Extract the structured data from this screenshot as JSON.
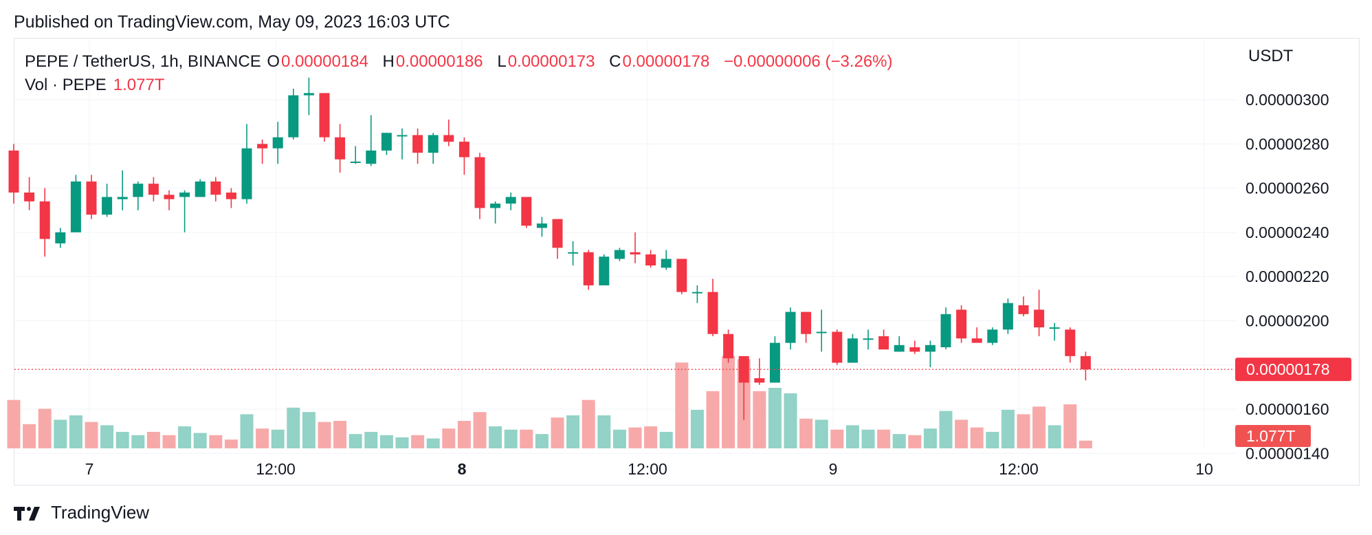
{
  "header": {
    "published": "Published on TradingView.com, May 09, 2023 16:03 UTC"
  },
  "legend": {
    "symbol": "PEPE / TetherUS, 1h, BINANCE",
    "open_label": "O",
    "open": "0.00000184",
    "high_label": "H",
    "high": "0.00000186",
    "low_label": "L",
    "low": "0.00000173",
    "close_label": "C",
    "close": "0.00000178",
    "change": "−0.00000006 (−3.26%)",
    "volume_label": "Vol · PEPE",
    "volume": "1.077T"
  },
  "axis": {
    "unit": "USDT",
    "y_ticks": [
      "0.00000300",
      "0.00000280",
      "0.00000260",
      "0.00000240",
      "0.00000220",
      "0.00000200",
      "0.00000160",
      "0.00000140"
    ],
    "x_ticks": [
      "7",
      "12:00",
      "8",
      "12:00",
      "9",
      "12:00",
      "10"
    ],
    "last_price": "0.00000178",
    "last_volume": "1.077T"
  },
  "footer": {
    "brand": "TradingView"
  },
  "colors": {
    "up": "#089981",
    "down": "#f23645",
    "up_vol": "#92d2c7",
    "down_vol": "#f7a9a9"
  },
  "chart_data": {
    "type": "candlestick",
    "price_scale_divisor": 1e-08,
    "price_unit": "1e-8 USDT",
    "y_range": [
      139,
      318
    ],
    "candles": [
      {
        "o": 277,
        "h": 280,
        "l": 253,
        "c": 258
      },
      {
        "o": 258,
        "h": 265,
        "l": 250,
        "c": 254
      },
      {
        "o": 254,
        "h": 260,
        "l": 229,
        "c": 237
      },
      {
        "o": 235,
        "h": 242,
        "l": 233,
        "c": 240
      },
      {
        "o": 240,
        "h": 266,
        "l": 240,
        "c": 263
      },
      {
        "o": 263,
        "h": 266,
        "l": 246,
        "c": 248
      },
      {
        "o": 248,
        "h": 262,
        "l": 247,
        "c": 256
      },
      {
        "o": 255,
        "h": 268,
        "l": 250,
        "c": 256
      },
      {
        "o": 256,
        "h": 263,
        "l": 250,
        "c": 262
      },
      {
        "o": 262,
        "h": 265,
        "l": 254,
        "c": 257
      },
      {
        "o": 257,
        "h": 259,
        "l": 250,
        "c": 255
      },
      {
        "o": 256,
        "h": 259,
        "l": 240,
        "c": 258
      },
      {
        "o": 256,
        "h": 264,
        "l": 256,
        "c": 263
      },
      {
        "o": 263,
        "h": 265,
        "l": 254,
        "c": 257
      },
      {
        "o": 258,
        "h": 260,
        "l": 251,
        "c": 255
      },
      {
        "o": 255,
        "h": 289,
        "l": 253,
        "c": 278
      },
      {
        "o": 280,
        "h": 282,
        "l": 271,
        "c": 278
      },
      {
        "o": 278,
        "h": 290,
        "l": 271,
        "c": 283
      },
      {
        "o": 283,
        "h": 305,
        "l": 282,
        "c": 302
      },
      {
        "o": 302,
        "h": 310,
        "l": 293,
        "c": 303
      },
      {
        "o": 303,
        "h": 303,
        "l": 281,
        "c": 283
      },
      {
        "o": 283,
        "h": 289,
        "l": 267,
        "c": 273
      },
      {
        "o": 272,
        "h": 279,
        "l": 271,
        "c": 272
      },
      {
        "o": 271,
        "h": 293,
        "l": 270,
        "c": 277
      },
      {
        "o": 277,
        "h": 285,
        "l": 275,
        "c": 285
      },
      {
        "o": 284,
        "h": 287,
        "l": 273,
        "c": 284
      },
      {
        "o": 284,
        "h": 287,
        "l": 271,
        "c": 276
      },
      {
        "o": 276,
        "h": 285,
        "l": 271,
        "c": 284
      },
      {
        "o": 284,
        "h": 291,
        "l": 279,
        "c": 281
      },
      {
        "o": 281,
        "h": 283,
        "l": 266,
        "c": 274
      },
      {
        "o": 274,
        "h": 276,
        "l": 246,
        "c": 251
      },
      {
        "o": 251,
        "h": 254,
        "l": 244,
        "c": 253
      },
      {
        "o": 253,
        "h": 258,
        "l": 250,
        "c": 256
      },
      {
        "o": 256,
        "h": 256,
        "l": 242,
        "c": 243
      },
      {
        "o": 242,
        "h": 247,
        "l": 238,
        "c": 244
      },
      {
        "o": 246,
        "h": 246,
        "l": 228,
        "c": 233
      },
      {
        "o": 231,
        "h": 236,
        "l": 225,
        "c": 231
      },
      {
        "o": 231,
        "h": 232,
        "l": 214,
        "c": 216
      },
      {
        "o": 216,
        "h": 230,
        "l": 216,
        "c": 229
      },
      {
        "o": 228,
        "h": 233,
        "l": 227,
        "c": 232
      },
      {
        "o": 231,
        "h": 240,
        "l": 226,
        "c": 230
      },
      {
        "o": 230,
        "h": 232,
        "l": 224,
        "c": 225
      },
      {
        "o": 224,
        "h": 232,
        "l": 223,
        "c": 228
      },
      {
        "o": 228,
        "h": 228,
        "l": 212,
        "c": 213
      },
      {
        "o": 213,
        "h": 216,
        "l": 208,
        "c": 213
      },
      {
        "o": 213,
        "h": 219,
        "l": 193,
        "c": 194
      },
      {
        "o": 194,
        "h": 196,
        "l": 181,
        "c": 183
      },
      {
        "o": 184,
        "h": 184,
        "l": 155,
        "c": 172
      },
      {
        "o": 174,
        "h": 183,
        "l": 171,
        "c": 172
      },
      {
        "o": 172,
        "h": 193,
        "l": 172,
        "c": 190
      },
      {
        "o": 190,
        "h": 206,
        "l": 187,
        "c": 204
      },
      {
        "o": 204,
        "h": 204,
        "l": 190,
        "c": 194
      },
      {
        "o": 195,
        "h": 205,
        "l": 186,
        "c": 195
      },
      {
        "o": 195,
        "h": 196,
        "l": 180,
        "c": 181
      },
      {
        "o": 181,
        "h": 194,
        "l": 181,
        "c": 192
      },
      {
        "o": 192,
        "h": 196,
        "l": 187,
        "c": 192
      },
      {
        "o": 193,
        "h": 196,
        "l": 188,
        "c": 187
      },
      {
        "o": 186,
        "h": 193,
        "l": 186,
        "c": 189
      },
      {
        "o": 188,
        "h": 191,
        "l": 185,
        "c": 186
      },
      {
        "o": 186,
        "h": 191,
        "l": 179,
        "c": 189
      },
      {
        "o": 188,
        "h": 206,
        "l": 187,
        "c": 203
      },
      {
        "o": 205,
        "h": 207,
        "l": 190,
        "c": 192
      },
      {
        "o": 192,
        "h": 197,
        "l": 190,
        "c": 190
      },
      {
        "o": 190,
        "h": 197,
        "l": 189,
        "c": 196
      },
      {
        "o": 196,
        "h": 210,
        "l": 194,
        "c": 208
      },
      {
        "o": 207,
        "h": 211,
        "l": 202,
        "c": 203
      },
      {
        "o": 205,
        "h": 214,
        "l": 193,
        "c": 197
      },
      {
        "o": 197,
        "h": 199,
        "l": 191,
        "c": 197
      },
      {
        "o": 196,
        "h": 197,
        "l": 181,
        "c": 184
      },
      {
        "o": 184,
        "h": 186,
        "l": 173,
        "c": 178
      }
    ],
    "volume_ratio_of_max": [
      0.44,
      0.22,
      0.36,
      0.26,
      0.3,
      0.24,
      0.21,
      0.15,
      0.12,
      0.15,
      0.12,
      0.2,
      0.14,
      0.12,
      0.08,
      0.31,
      0.18,
      0.17,
      0.37,
      0.33,
      0.24,
      0.25,
      0.13,
      0.15,
      0.12,
      0.1,
      0.12,
      0.09,
      0.18,
      0.25,
      0.33,
      0.2,
      0.17,
      0.17,
      0.13,
      0.28,
      0.3,
      0.44,
      0.3,
      0.17,
      0.19,
      0.2,
      0.15,
      0.78,
      0.35,
      0.52,
      0.84,
      0.81,
      0.52,
      0.55,
      0.5,
      0.27,
      0.26,
      0.17,
      0.21,
      0.17,
      0.17,
      0.13,
      0.12,
      0.18,
      0.34,
      0.26,
      0.19,
      0.15,
      0.35,
      0.31,
      0.38,
      0.21,
      0.4,
      0.07
    ]
  }
}
